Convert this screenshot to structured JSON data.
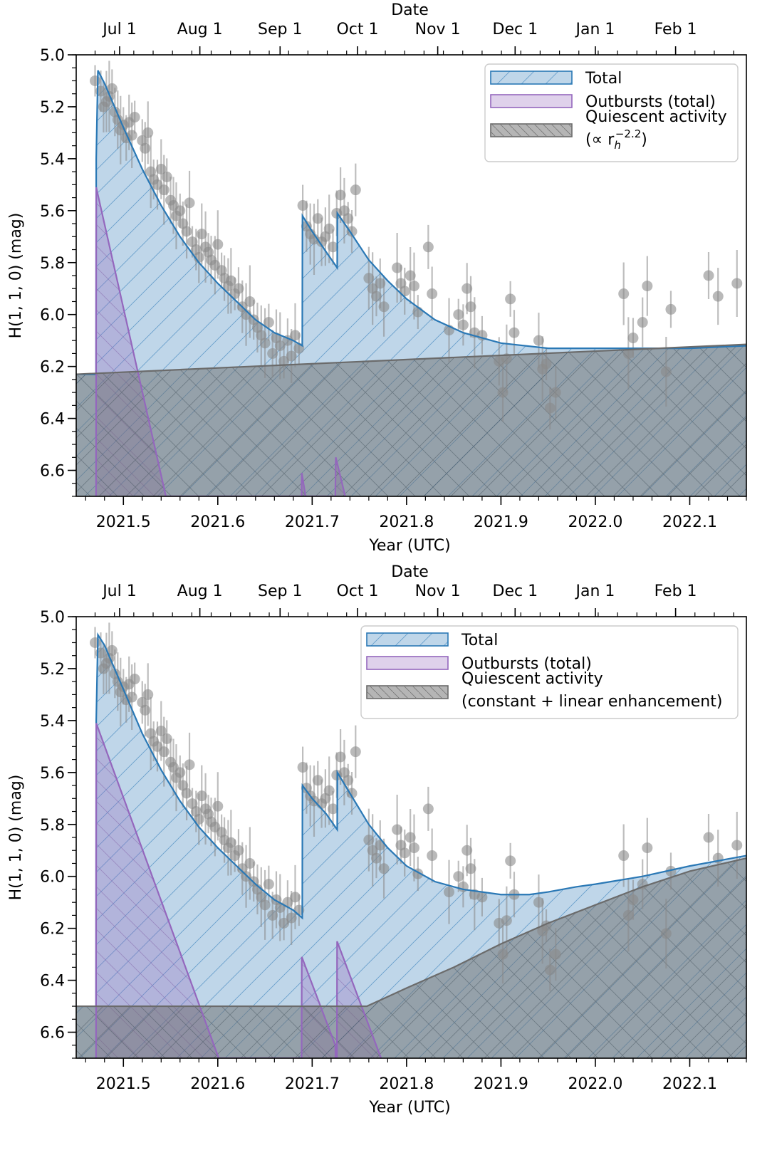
{
  "chart_data": [
    {
      "type": "area",
      "xlabel": "Year (UTC)",
      "x2label": "Date",
      "ylabel": "H(1, 1, 0) (mag)",
      "xlim": [
        2021.45,
        2022.16
      ],
      "ylim": [
        6.7,
        5.0
      ],
      "y_inverted": true,
      "xticks": [
        "2021.5",
        "2021.6",
        "2021.7",
        "2021.8",
        "2021.9",
        "2022.0",
        "2022.1"
      ],
      "yticks": [
        "5.0",
        "5.2",
        "5.4",
        "5.6",
        "5.8",
        "6.0",
        "6.2",
        "6.4",
        "6.6"
      ],
      "date_ticks": [
        {
          "label": "Jul 1",
          "year": 2021.496
        },
        {
          "label": "Aug 1",
          "year": 2021.581
        },
        {
          "label": "Sep 1",
          "year": 2021.666
        },
        {
          "label": "Oct 1",
          "year": 2021.748
        },
        {
          "label": "Nov 1",
          "year": 2021.833
        },
        {
          "label": "Dec 1",
          "year": 2021.915
        },
        {
          "label": "Jan 1",
          "year": 2022.0
        },
        {
          "label": "Feb 1",
          "year": 2022.085
        }
      ],
      "legend": {
        "placement": "top-right",
        "entries": [
          "Total",
          "Outbursts (total)",
          "Quiescent activity"
        ],
        "formula": {
          "prefix": "(∝ r",
          "sub": "h",
          "sup": "−2.2",
          "suffix": ")"
        }
      },
      "series": [
        {
          "name": "Total",
          "color": "#2a78b5",
          "x": [
            2021.45,
            2021.471,
            2021.4712,
            2021.473,
            2021.48,
            2021.5,
            2021.52,
            2021.54,
            2021.56,
            2021.58,
            2021.6,
            2021.62,
            2021.64,
            2021.66,
            2021.68,
            2021.6895,
            2021.6897,
            2021.7,
            2021.715,
            2021.7265,
            2021.7267,
            2021.74,
            2021.76,
            2021.78,
            2021.8,
            2021.83,
            2021.86,
            2021.9,
            2021.95,
            2022.0,
            2022.05,
            2022.1,
            2022.16
          ],
          "y": [
            6.23,
            6.23,
            5.4,
            5.06,
            5.11,
            5.28,
            5.44,
            5.58,
            5.7,
            5.8,
            5.88,
            5.95,
            6.02,
            6.07,
            6.1,
            6.12,
            5.62,
            5.68,
            5.76,
            5.82,
            5.61,
            5.68,
            5.79,
            5.87,
            5.94,
            6.02,
            6.07,
            6.11,
            6.13,
            6.13,
            6.13,
            6.13,
            6.12
          ]
        },
        {
          "name": "Outbursts (total)",
          "color": "#9467bd",
          "x": [
            2021.471,
            2021.4712,
            2021.545,
            2021.545,
            2021.6888,
            2021.689,
            2021.693,
            2021.693,
            2021.7245,
            2021.725,
            2021.735,
            2021.735
          ],
          "y": [
            6.7,
            5.51,
            6.7,
            6.7,
            6.7,
            6.61,
            6.7,
            6.7,
            6.7,
            6.55,
            6.7,
            6.7
          ]
        },
        {
          "name": "Quiescent activity",
          "color": "#6b6b6b",
          "x": [
            2021.45,
            2022.16
          ],
          "y": [
            6.23,
            6.115
          ]
        }
      ],
      "observations": {
        "x": [
          2021.47,
          2021.476,
          2021.479,
          2021.482,
          2021.485,
          2021.488,
          2021.491,
          2021.494,
          2021.497,
          2021.5,
          2021.503,
          2021.506,
          2021.509,
          2021.512,
          2021.52,
          2021.523,
          2021.526,
          2021.529,
          2021.532,
          2021.536,
          2021.54,
          2021.543,
          2021.546,
          2021.55,
          2021.553,
          2021.556,
          2021.56,
          2021.563,
          2021.567,
          2021.57,
          2021.573,
          2021.577,
          2021.58,
          2021.583,
          2021.587,
          2021.59,
          2021.593,
          2021.597,
          2021.6,
          2021.604,
          2021.607,
          2021.611,
          2021.614,
          2021.618,
          2021.622,
          2021.626,
          2021.63,
          2021.634,
          2021.638,
          2021.642,
          2021.646,
          2021.65,
          2021.654,
          2021.658,
          2021.662,
          2021.666,
          2021.67,
          2021.674,
          2021.678,
          2021.682,
          2021.686,
          2021.69,
          2021.694,
          2021.698,
          2021.702,
          2021.706,
          2021.71,
          2021.714,
          2021.718,
          2021.722,
          2021.726,
          2021.73,
          2021.734,
          2021.738,
          2021.742,
          2021.746,
          2021.76,
          2021.764,
          2021.768,
          2021.772,
          2021.776,
          2021.79,
          2021.794,
          2021.798,
          2021.804,
          2021.808,
          2021.812,
          2021.823,
          2021.827,
          2021.845,
          2021.855,
          2021.86,
          2021.864,
          2021.868,
          2021.872,
          2021.88,
          2021.898,
          2021.902,
          2021.906,
          2021.91,
          2021.914,
          2021.94,
          2021.944,
          2021.948,
          2021.952,
          2021.958,
          2022.03,
          2022.035,
          2022.04,
          2022.05,
          2022.055,
          2022.075,
          2022.08,
          2022.12,
          2022.13,
          2022.15
        ],
        "y": [
          5.1,
          5.14,
          5.2,
          5.18,
          5.16,
          5.13,
          5.22,
          5.25,
          5.29,
          5.27,
          5.32,
          5.26,
          5.31,
          5.24,
          5.33,
          5.36,
          5.3,
          5.45,
          5.48,
          5.5,
          5.44,
          5.52,
          5.47,
          5.56,
          5.58,
          5.62,
          5.6,
          5.65,
          5.68,
          5.57,
          5.72,
          5.75,
          5.78,
          5.69,
          5.74,
          5.76,
          5.79,
          5.81,
          5.73,
          5.83,
          5.86,
          5.89,
          5.87,
          5.92,
          5.9,
          5.97,
          6.0,
          5.95,
          6.02,
          6.05,
          6.08,
          6.11,
          6.03,
          6.15,
          6.09,
          6.12,
          6.18,
          6.1,
          6.16,
          6.08,
          6.13,
          5.58,
          5.66,
          5.69,
          5.71,
          5.63,
          5.72,
          5.7,
          5.67,
          5.74,
          5.61,
          5.54,
          5.6,
          5.63,
          5.68,
          5.52,
          5.86,
          5.9,
          5.93,
          5.88,
          5.97,
          5.82,
          5.88,
          5.91,
          5.85,
          5.89,
          5.99,
          5.74,
          5.92,
          6.06,
          6.0,
          6.04,
          5.9,
          5.97,
          6.07,
          6.08,
          6.18,
          6.3,
          6.17,
          5.94,
          6.07,
          6.1,
          6.21,
          6.19,
          6.36,
          6.3,
          5.92,
          6.15,
          6.09,
          6.03,
          5.89,
          6.22,
          5.98,
          5.85,
          5.93,
          5.88
        ]
      }
    },
    {
      "type": "area",
      "xlabel": "Year (UTC)",
      "x2label": "Date",
      "ylabel": "H(1, 1, 0) (mag)",
      "xlim": [
        2021.45,
        2022.16
      ],
      "ylim": [
        6.7,
        5.0
      ],
      "y_inverted": true,
      "xticks": [
        "2021.5",
        "2021.6",
        "2021.7",
        "2021.8",
        "2021.9",
        "2022.0",
        "2022.1"
      ],
      "yticks": [
        "5.0",
        "5.2",
        "5.4",
        "5.6",
        "5.8",
        "6.0",
        "6.2",
        "6.4",
        "6.6"
      ],
      "date_ticks": [
        {
          "label": "Jul 1",
          "year": 2021.496
        },
        {
          "label": "Aug 1",
          "year": 2021.581
        },
        {
          "label": "Sep 1",
          "year": 2021.666
        },
        {
          "label": "Oct 1",
          "year": 2021.748
        },
        {
          "label": "Nov 1",
          "year": 2021.833
        },
        {
          "label": "Dec 1",
          "year": 2021.915
        },
        {
          "label": "Jan 1",
          "year": 2022.0
        },
        {
          "label": "Feb 1",
          "year": 2022.085
        }
      ],
      "legend": {
        "placement": "top-right",
        "entries": [
          "Total",
          "Outbursts (total)",
          "Quiescent activity"
        ],
        "subtitle": "(constant + linear enhancement)"
      },
      "series": [
        {
          "name": "Total",
          "color": "#2a78b5",
          "x": [
            2021.45,
            2021.471,
            2021.4712,
            2021.473,
            2021.48,
            2021.5,
            2021.52,
            2021.54,
            2021.56,
            2021.58,
            2021.6,
            2021.62,
            2021.64,
            2021.66,
            2021.68,
            2021.6895,
            2021.6897,
            2021.7,
            2021.715,
            2021.7265,
            2021.7267,
            2021.74,
            2021.76,
            2021.78,
            2021.8,
            2021.83,
            2021.86,
            2021.9,
            2021.93,
            2021.95,
            2021.98,
            2022.0,
            2022.05,
            2022.1,
            2022.16
          ],
          "y": [
            6.5,
            6.5,
            5.4,
            5.07,
            5.11,
            5.28,
            5.45,
            5.59,
            5.71,
            5.81,
            5.89,
            5.96,
            6.03,
            6.09,
            6.13,
            6.16,
            5.65,
            5.7,
            5.76,
            5.82,
            5.6,
            5.68,
            5.8,
            5.89,
            5.96,
            6.02,
            6.05,
            6.07,
            6.07,
            6.06,
            6.04,
            6.03,
            6.0,
            5.96,
            5.92
          ]
        },
        {
          "name": "Outbursts (total)",
          "color": "#9467bd",
          "x": [
            2021.471,
            2021.4712,
            2021.601,
            2021.601,
            2021.6888,
            2021.689,
            2021.7245,
            2021.7247,
            2021.7262,
            2021.7264,
            2021.773,
            2021.773
          ],
          "y": [
            6.7,
            5.41,
            6.7,
            6.7,
            6.7,
            6.31,
            6.65,
            6.7,
            6.7,
            6.25,
            6.7,
            6.7
          ]
        },
        {
          "name": "Quiescent activity",
          "color": "#6b6b6b",
          "x": [
            2021.45,
            2021.758,
            2021.8,
            2021.85,
            2021.9,
            2021.95,
            2022.0,
            2022.05,
            2022.1,
            2022.16
          ],
          "y": [
            6.5,
            6.5,
            6.43,
            6.35,
            6.26,
            6.18,
            6.11,
            6.04,
            5.98,
            5.93
          ]
        }
      ],
      "observations": {
        "x": [
          2021.47,
          2021.476,
          2021.479,
          2021.482,
          2021.485,
          2021.488,
          2021.491,
          2021.494,
          2021.497,
          2021.5,
          2021.503,
          2021.506,
          2021.509,
          2021.512,
          2021.52,
          2021.523,
          2021.526,
          2021.529,
          2021.532,
          2021.536,
          2021.54,
          2021.543,
          2021.546,
          2021.55,
          2021.553,
          2021.556,
          2021.56,
          2021.563,
          2021.567,
          2021.57,
          2021.573,
          2021.577,
          2021.58,
          2021.583,
          2021.587,
          2021.59,
          2021.593,
          2021.597,
          2021.6,
          2021.604,
          2021.607,
          2021.611,
          2021.614,
          2021.618,
          2021.622,
          2021.626,
          2021.63,
          2021.634,
          2021.638,
          2021.642,
          2021.646,
          2021.65,
          2021.654,
          2021.658,
          2021.662,
          2021.666,
          2021.67,
          2021.674,
          2021.678,
          2021.682,
          2021.686,
          2021.69,
          2021.694,
          2021.698,
          2021.702,
          2021.706,
          2021.71,
          2021.714,
          2021.718,
          2021.722,
          2021.726,
          2021.73,
          2021.734,
          2021.738,
          2021.742,
          2021.746,
          2021.76,
          2021.764,
          2021.768,
          2021.772,
          2021.776,
          2021.79,
          2021.794,
          2021.798,
          2021.804,
          2021.808,
          2021.812,
          2021.823,
          2021.827,
          2021.845,
          2021.855,
          2021.86,
          2021.864,
          2021.868,
          2021.872,
          2021.88,
          2021.898,
          2021.902,
          2021.906,
          2021.91,
          2021.914,
          2021.94,
          2021.944,
          2021.948,
          2021.952,
          2021.958,
          2022.03,
          2022.035,
          2022.04,
          2022.05,
          2022.055,
          2022.075,
          2022.08,
          2022.12,
          2022.13,
          2022.15
        ],
        "y": [
          5.1,
          5.14,
          5.2,
          5.18,
          5.16,
          5.13,
          5.22,
          5.25,
          5.29,
          5.27,
          5.32,
          5.26,
          5.31,
          5.24,
          5.33,
          5.36,
          5.3,
          5.45,
          5.48,
          5.5,
          5.44,
          5.52,
          5.47,
          5.56,
          5.58,
          5.62,
          5.6,
          5.65,
          5.68,
          5.57,
          5.72,
          5.75,
          5.78,
          5.69,
          5.74,
          5.76,
          5.79,
          5.81,
          5.73,
          5.83,
          5.86,
          5.89,
          5.87,
          5.92,
          5.9,
          5.97,
          6.0,
          5.95,
          6.02,
          6.05,
          6.08,
          6.11,
          6.03,
          6.15,
          6.09,
          6.12,
          6.18,
          6.1,
          6.16,
          6.08,
          6.13,
          5.58,
          5.66,
          5.69,
          5.71,
          5.63,
          5.72,
          5.7,
          5.67,
          5.74,
          5.61,
          5.54,
          5.6,
          5.63,
          5.68,
          5.52,
          5.86,
          5.9,
          5.93,
          5.88,
          5.97,
          5.82,
          5.88,
          5.91,
          5.85,
          5.89,
          5.99,
          5.74,
          5.92,
          6.06,
          6.0,
          6.04,
          5.9,
          5.97,
          6.07,
          6.08,
          6.18,
          6.3,
          6.17,
          5.94,
          6.07,
          6.1,
          6.21,
          6.19,
          6.36,
          6.3,
          5.92,
          6.15,
          6.09,
          6.03,
          5.89,
          6.22,
          5.98,
          5.85,
          5.93,
          5.88
        ]
      }
    }
  ]
}
